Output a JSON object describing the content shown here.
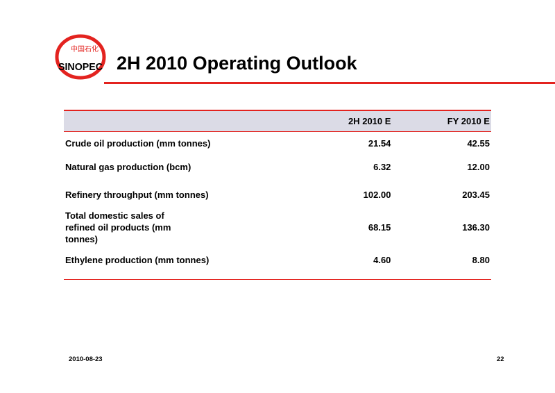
{
  "logo": {
    "mark_text": "中国石化",
    "word_text": "SINOPEC",
    "colors": {
      "red": "#e3231f",
      "black": "#000000"
    }
  },
  "title": "2H 2010 Operating Outlook",
  "table": {
    "headers": [
      "",
      "2H 2010 E",
      "FY 2010 E"
    ],
    "rows": [
      {
        "label": "Crude oil production (mm tonnes)",
        "h2": "21.54",
        "fy": "42.55"
      },
      {
        "label": "Natural gas production (bcm)",
        "h2": "6.32",
        "fy": "12.00"
      },
      {
        "label": "Refinery throughput (mm tonnes)",
        "h2": "102.00",
        "fy": "203.45"
      },
      {
        "label": "Total domestic sales of refined oil products (mm tonnes)",
        "h2": "68.15",
        "fy": "136.30"
      },
      {
        "label": "Ethylene production (mm tonnes)",
        "h2": "4.60",
        "fy": "8.80"
      }
    ]
  },
  "footer": {
    "date": "2010-08-23",
    "page": "22"
  },
  "colors": {
    "accent": "#e3231f",
    "header_bg": "#dbdbe6"
  }
}
